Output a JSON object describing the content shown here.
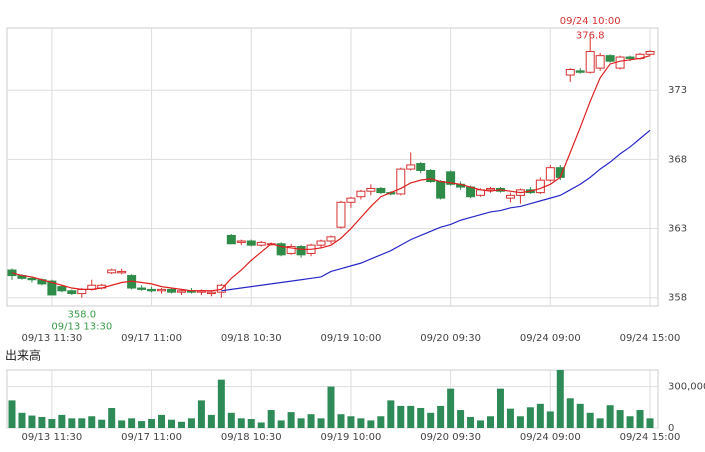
{
  "chart_data": [
    {
      "type": "candlestick",
      "categories": [
        null,
        null,
        null,
        null,
        "09/13 11:30",
        null,
        null,
        null,
        null,
        null,
        null,
        null,
        null,
        null,
        "09/17 11:00",
        null,
        null,
        null,
        null,
        null,
        null,
        null,
        null,
        null,
        "09/18 10:30",
        null,
        null,
        null,
        null,
        null,
        null,
        null,
        null,
        null,
        "09/19 10:00",
        null,
        null,
        null,
        null,
        null,
        null,
        null,
        null,
        null,
        "09/20 09:30",
        null,
        null,
        null,
        null,
        null,
        null,
        null,
        null,
        null,
        "09/24 09:00",
        null,
        null,
        null,
        null,
        null,
        null,
        null,
        null,
        null,
        "09/24 15:00"
      ],
      "open": [
        360.0,
        359.6,
        359.4,
        359.3,
        359.2,
        358.8,
        358.5,
        358.3,
        358.6,
        358.7,
        359.8,
        359.8,
        359.6,
        358.7,
        358.6,
        358.5,
        358.6,
        358.4,
        358.5,
        358.4,
        358.3,
        358.4,
        362.5,
        362.0,
        362.1,
        361.8,
        361.9,
        361.9,
        361.2,
        361.7,
        361.2,
        361.8,
        362.1,
        363.1,
        364.9,
        365.3,
        365.7,
        365.9,
        365.6,
        365.5,
        367.3,
        367.7,
        367.2,
        366.4,
        367.1,
        366.2,
        366.0,
        365.4,
        365.8,
        365.9,
        365.2,
        365.4,
        365.8,
        365.6,
        366.5,
        367.4,
        374.1,
        374.4,
        374.3,
        374.6,
        375.5,
        374.6,
        375.4,
        375.3,
        375.6
      ],
      "high": [
        360.1,
        359.7,
        359.5,
        359.4,
        359.3,
        358.9,
        358.6,
        358.7,
        359.3,
        359.0,
        360.1,
        360.1,
        359.7,
        358.9,
        358.8,
        358.7,
        358.7,
        358.6,
        358.7,
        358.6,
        358.5,
        359.0,
        362.6,
        362.2,
        362.2,
        362.1,
        362.0,
        362.0,
        361.9,
        361.8,
        361.9,
        362.2,
        362.5,
        365.0,
        365.3,
        365.8,
        366.2,
        366.0,
        365.7,
        367.4,
        368.5,
        367.8,
        367.3,
        366.5,
        367.2,
        366.4,
        366.1,
        365.9,
        366.0,
        366.0,
        365.6,
        365.9,
        366.0,
        366.7,
        367.6,
        367.6,
        374.6,
        374.6,
        376.8,
        375.7,
        375.6,
        375.5,
        375.5,
        375.7,
        375.9
      ],
      "low": [
        359.3,
        359.3,
        359.1,
        358.9,
        358.2,
        358.4,
        358.2,
        358.0,
        358.5,
        358.6,
        359.7,
        359.7,
        358.6,
        358.5,
        358.4,
        358.3,
        358.3,
        358.2,
        358.3,
        358.2,
        358.1,
        358.0,
        361.9,
        361.8,
        361.7,
        361.7,
        361.8,
        361.0,
        361.1,
        360.9,
        361.0,
        361.6,
        361.9,
        363.0,
        364.5,
        365.1,
        365.4,
        365.5,
        365.4,
        365.4,
        367.2,
        367.0,
        366.3,
        365.1,
        366.1,
        365.8,
        365.2,
        365.3,
        365.6,
        365.6,
        364.9,
        364.8,
        365.5,
        365.5,
        366.4,
        366.5,
        373.6,
        374.2,
        374.2,
        374.4,
        375.0,
        374.5,
        375.1,
        375.2,
        375.5
      ],
      "close": [
        359.6,
        359.4,
        359.3,
        359.0,
        358.2,
        358.5,
        358.3,
        358.6,
        358.9,
        358.9,
        360.0,
        359.9,
        358.7,
        358.6,
        358.5,
        358.6,
        358.4,
        358.5,
        358.4,
        358.5,
        358.4,
        358.9,
        361.9,
        362.1,
        361.8,
        362.0,
        361.9,
        361.1,
        361.7,
        361.1,
        361.8,
        362.1,
        362.4,
        364.9,
        365.2,
        365.7,
        365.9,
        365.6,
        365.5,
        367.3,
        367.6,
        367.2,
        366.4,
        365.2,
        366.2,
        366.0,
        365.3,
        365.8,
        365.9,
        365.7,
        365.4,
        365.8,
        365.6,
        366.5,
        367.4,
        366.7,
        374.5,
        374.3,
        375.8,
        375.5,
        375.1,
        375.4,
        375.3,
        375.6,
        375.8
      ],
      "up_color": "#d63030",
      "down_color": "#2e8b48",
      "moving_averages": [
        {
          "color": "#e02020",
          "values": [
            359.8,
            359.6,
            359.5,
            359.3,
            359.1,
            358.9,
            358.7,
            358.6,
            358.6,
            358.7,
            358.9,
            359.1,
            359.2,
            359.1,
            359.0,
            358.8,
            358.7,
            358.6,
            358.5,
            358.5,
            358.5,
            358.6,
            359.4,
            360.0,
            360.7,
            361.3,
            361.9,
            361.7,
            361.6,
            361.5,
            361.5,
            361.6,
            361.8,
            362.3,
            363.0,
            363.8,
            364.6,
            365.3,
            365.6,
            365.9,
            366.3,
            366.5,
            366.6,
            366.4,
            366.3,
            366.2,
            366.0,
            365.8,
            365.7,
            365.8,
            365.7,
            365.6,
            365.7,
            365.9,
            366.2,
            366.7,
            368.5,
            370.3,
            372.2,
            373.9,
            374.9,
            375.1,
            375.2,
            375.3,
            375.5
          ]
        },
        {
          "color": "#2828c8",
          "values": [
            null,
            null,
            null,
            null,
            null,
            null,
            null,
            null,
            null,
            null,
            null,
            null,
            null,
            null,
            null,
            null,
            null,
            null,
            null,
            null,
            null,
            358.5,
            358.6,
            358.7,
            358.8,
            358.9,
            359.0,
            359.1,
            359.2,
            359.3,
            359.4,
            359.5,
            359.9,
            360.1,
            360.3,
            360.5,
            360.8,
            361.1,
            361.4,
            361.8,
            362.2,
            362.5,
            362.8,
            363.1,
            363.3,
            363.6,
            363.8,
            364.0,
            364.2,
            364.3,
            364.5,
            364.6,
            364.8,
            365.0,
            365.2,
            365.4,
            365.8,
            366.2,
            366.7,
            367.3,
            367.8,
            368.4,
            368.9,
            369.5,
            370.1
          ]
        }
      ],
      "high_marker": {
        "x": "09/24 10:00",
        "value": 376.8
      },
      "low_marker": {
        "x": "09/13 13:30",
        "value": 358,
        "label": "358.0"
      },
      "ylim": [
        357.4,
        377.5
      ],
      "yticks": [
        358,
        363,
        368,
        373
      ],
      "grid": true
    },
    {
      "type": "bar",
      "title": "出来高",
      "color": "#2e8b57",
      "categories": [
        null,
        null,
        null,
        null,
        "09/13 11:30",
        null,
        null,
        null,
        null,
        null,
        null,
        null,
        null,
        null,
        "09/17 11:00",
        null,
        null,
        null,
        null,
        null,
        null,
        null,
        null,
        null,
        "09/18 10:30",
        null,
        null,
        null,
        null,
        null,
        null,
        null,
        null,
        null,
        "09/19 10:00",
        null,
        null,
        null,
        null,
        null,
        null,
        null,
        null,
        null,
        "09/20 09:30",
        null,
        null,
        null,
        null,
        null,
        null,
        null,
        null,
        null,
        "09/24 09:00",
        null,
        null,
        null,
        null,
        null,
        null,
        null,
        null,
        null,
        "09/24 15:00"
      ],
      "values": [
        200000,
        110000,
        90000,
        80000,
        65000,
        95000,
        70000,
        70000,
        85000,
        60000,
        145000,
        55000,
        70000,
        50000,
        65000,
        95000,
        60000,
        45000,
        70000,
        200000,
        95000,
        350000,
        110000,
        70000,
        65000,
        40000,
        130000,
        55000,
        115000,
        70000,
        100000,
        70000,
        300000,
        100000,
        85000,
        70000,
        55000,
        85000,
        200000,
        160000,
        160000,
        145000,
        110000,
        160000,
        285000,
        130000,
        80000,
        55000,
        85000,
        285000,
        140000,
        85000,
        150000,
        175000,
        120000,
        420000,
        215000,
        175000,
        110000,
        70000,
        165000,
        130000,
        85000,
        130000,
        70000
      ],
      "ylim": [
        0,
        420000
      ],
      "yticks": [
        0,
        {
          "value": 300000,
          "label": "300,000"
        }
      ],
      "grid": true
    }
  ]
}
